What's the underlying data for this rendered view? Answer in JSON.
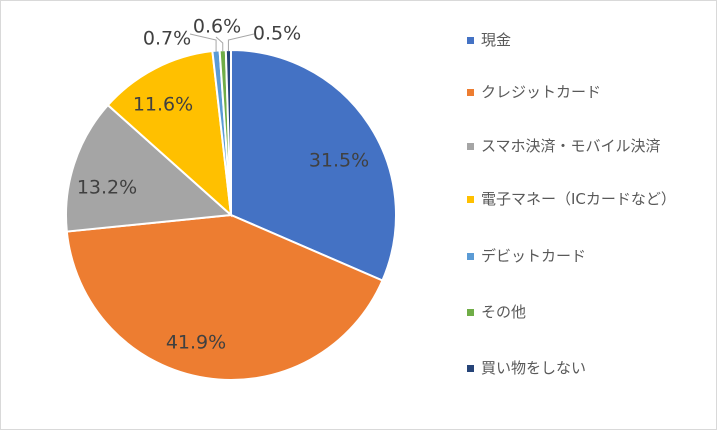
{
  "chart_data": {
    "type": "pie",
    "title": "",
    "categories": [
      "現金",
      "クレジットカード",
      "スマホ決済・モバイル決済",
      "電子マネー（ICカードなど）",
      "デビットカード",
      "その他",
      "買い物をしない"
    ],
    "values": [
      31.5,
      41.9,
      13.2,
      11.6,
      0.7,
      0.6,
      0.5
    ],
    "labels": [
      "31.5%",
      "41.9%",
      "13.2%",
      "11.6%",
      "0.7%",
      "0.6%",
      "0.5%"
    ],
    "colors": [
      "#4472c4",
      "#ed7d31",
      "#a5a5a5",
      "#ffc000",
      "#5b9bd5",
      "#70ad47",
      "#264478"
    ],
    "legend_position": "right",
    "start_angle": "12 o'clock",
    "direction": "clockwise"
  }
}
